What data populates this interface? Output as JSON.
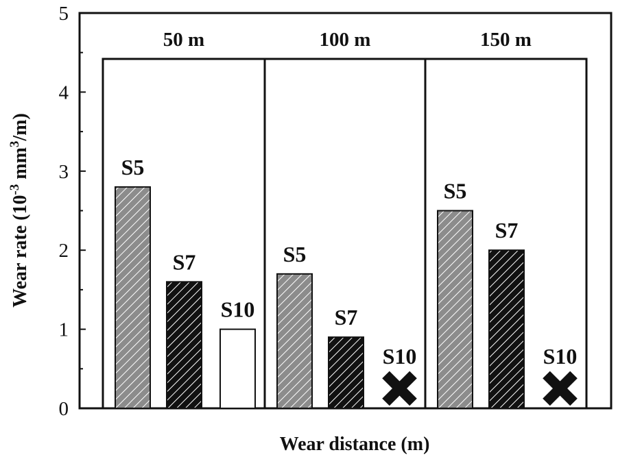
{
  "chart_data": {
    "type": "bar",
    "xlabel": "Wear distance (m)",
    "ylabel": "Wear rate (10-3 mm3/m)",
    "ylabel_parts": {
      "main": "Wear rate (10",
      "exp1": "-3",
      "mid": " mm",
      "exp2": "3",
      "end": "/m)"
    },
    "ylim": [
      0,
      5
    ],
    "yticks": [
      0,
      1,
      2,
      3,
      4,
      5
    ],
    "grid": false,
    "groups": [
      {
        "label": "50 m",
        "bars": [
          {
            "name": "S5",
            "value": 2.8,
            "style": "hatched-gray"
          },
          {
            "name": "S7",
            "value": 1.6,
            "style": "hatched-black"
          },
          {
            "name": "S10",
            "value": 1.0,
            "style": "white"
          }
        ]
      },
      {
        "label": "100 m",
        "bars": [
          {
            "name": "S5",
            "value": 1.7,
            "style": "hatched-gray"
          },
          {
            "name": "S7",
            "value": 0.9,
            "style": "hatched-black"
          },
          {
            "name": "S10",
            "value": 0,
            "style": "failed",
            "marker": "cross-icon"
          }
        ]
      },
      {
        "label": "150 m",
        "bars": [
          {
            "name": "S5",
            "value": 2.5,
            "style": "hatched-gray"
          },
          {
            "name": "S7",
            "value": 2.0,
            "style": "hatched-black"
          },
          {
            "name": "S10",
            "value": 0,
            "style": "failed",
            "marker": "cross-icon"
          }
        ]
      }
    ],
    "colors": {
      "gray_fill": "#8c8c8c",
      "black_fill": "#111111",
      "white_fill": "#ffffff",
      "stroke": "#111111"
    }
  }
}
